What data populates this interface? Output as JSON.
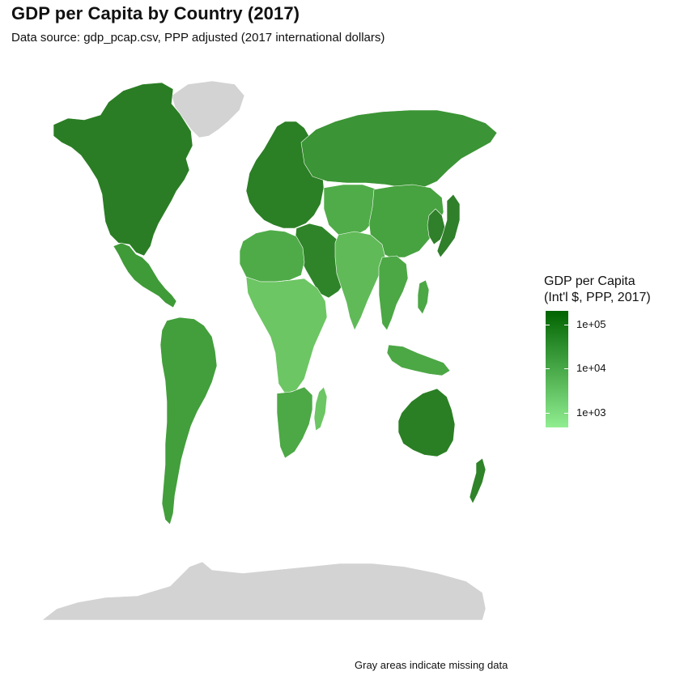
{
  "title": "GDP per Capita by Country (2017)",
  "subtitle": "Data source: gdp_pcap.csv, PPP adjusted (2017 international dollars)",
  "caption": "Gray areas indicate missing data",
  "legend": {
    "title_line1": "GDP per Capita",
    "title_line2": "(Int'l $, PPP, 2017)",
    "ticks": [
      "1e+05",
      "1e+04",
      "1e+03"
    ],
    "scale": "log10",
    "color_high": "#006400",
    "color_low": "#90EE90"
  },
  "colors": {
    "missing": "#D3D3D3",
    "border": "#ffffff",
    "background": "#ffffff"
  },
  "regions": [
    {
      "name": "north-america",
      "level": "high",
      "color": "#2A7D24"
    },
    {
      "name": "greenland",
      "level": "missing",
      "color": "#D3D3D3"
    },
    {
      "name": "mexico-central-america",
      "level": "mid",
      "color": "#3F9A38"
    },
    {
      "name": "south-america",
      "level": "mid",
      "color": "#439E3C"
    },
    {
      "name": "europe",
      "level": "high",
      "color": "#2B7F25"
    },
    {
      "name": "russia",
      "level": "mid-high",
      "color": "#3B9435"
    },
    {
      "name": "middle-east",
      "level": "high",
      "color": "#2F8429"
    },
    {
      "name": "north-africa",
      "level": "mid",
      "color": "#4FAB48"
    },
    {
      "name": "sub-saharan-africa",
      "level": "low",
      "color": "#6CC663"
    },
    {
      "name": "southern-africa",
      "level": "mid",
      "color": "#4DA846"
    },
    {
      "name": "central-asia",
      "level": "mid",
      "color": "#50AC49"
    },
    {
      "name": "china-mongolia",
      "level": "mid",
      "color": "#47A240"
    },
    {
      "name": "south-asia",
      "level": "low-mid",
      "color": "#60BA58"
    },
    {
      "name": "southeast-asia",
      "level": "mid",
      "color": "#4CA745"
    },
    {
      "name": "japan-korea",
      "level": "high",
      "color": "#307F2A"
    },
    {
      "name": "australia",
      "level": "high",
      "color": "#2A7F24"
    },
    {
      "name": "new-zealand",
      "level": "high",
      "color": "#2F8329"
    },
    {
      "name": "antarctica",
      "level": "missing",
      "color": "#D3D3D3"
    }
  ]
}
